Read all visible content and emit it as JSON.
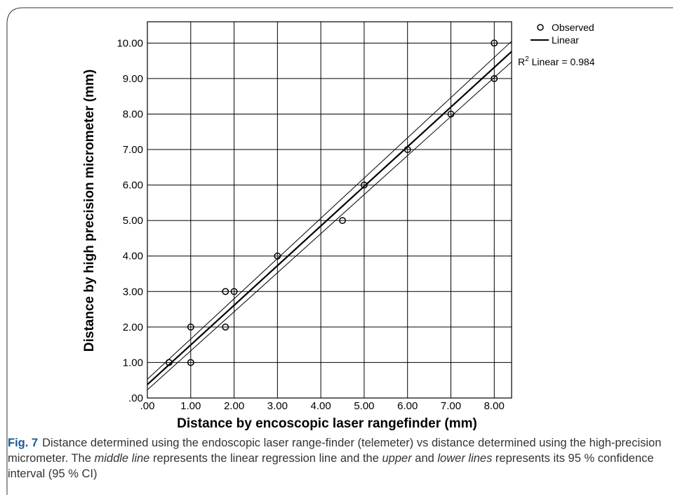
{
  "chart_data": {
    "type": "scatter",
    "title": "",
    "xlabel": "Distance by encoscopic laser rangefinder (mm)",
    "ylabel": "Distance by high precision micrometer (mm)",
    "xlim": [
      0,
      8.4
    ],
    "ylim": [
      0,
      10.6
    ],
    "xticks": [
      0,
      1,
      2,
      3,
      4,
      5,
      6,
      7,
      8
    ],
    "xtick_labels": [
      ".00",
      "1.00",
      "2.00",
      "3.00",
      "4.00",
      "5.00",
      "6.00",
      "7.00",
      "8.00"
    ],
    "yticks": [
      0,
      1,
      2,
      3,
      4,
      5,
      6,
      7,
      8,
      9,
      10
    ],
    "ytick_labels": [
      ".00",
      "1.00",
      "2.00",
      "3.00",
      "4.00",
      "5.00",
      "6.00",
      "7.00",
      "8.00",
      "9.00",
      "10.00"
    ],
    "grid": true,
    "legend_position": "top-right",
    "series": [
      {
        "name": "Observed",
        "kind": "points",
        "x": [
          0.5,
          1.0,
          1.0,
          1.8,
          1.8,
          2.0,
          3.0,
          4.5,
          5.0,
          6.0,
          7.0,
          8.0,
          8.0
        ],
        "y": [
          1.0,
          1.0,
          2.0,
          2.0,
          3.0,
          3.0,
          4.0,
          5.0,
          6.0,
          7.0,
          8.0,
          9.0,
          10.0
        ]
      },
      {
        "name": "Linear",
        "kind": "line",
        "x": [
          0,
          8.4
        ],
        "y": [
          0.38,
          9.76
        ]
      }
    ],
    "ci_bands": [
      {
        "x": [
          0,
          8.4
        ],
        "y": [
          0.53,
          10.05
        ]
      },
      {
        "x": [
          0,
          8.4
        ],
        "y": [
          0.23,
          9.47
        ]
      }
    ],
    "annotation": {
      "r2_label": "R",
      "r2_sup": "2",
      "r2_rest": " Linear = 0.984"
    }
  },
  "caption": {
    "fig_label": "Fig. 7",
    "part1": "Distance determined using the endoscopic laser range-finder (telemeter) vs distance determined using the high-precision micrometer. The ",
    "middle_line": "middle line",
    "part2": " represents the linear regression line and the ",
    "upper": "upper",
    "part3": " and ",
    "lower_lines": "lower lines",
    "part4": " represents its 95 % confidence interval (95 % CI)"
  }
}
